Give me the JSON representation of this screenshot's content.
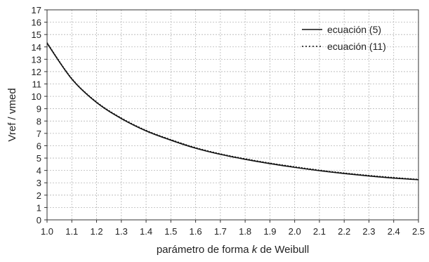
{
  "chart_data": {
    "type": "line",
    "title": "",
    "xlabel_pre": "parámetro de forma ",
    "xlabel_k": "k",
    "xlabel_post": " de Weibull",
    "ylabel": "Vref / vmed",
    "xlim": [
      1.0,
      2.5
    ],
    "ylim": [
      0,
      17
    ],
    "x_ticks": [
      "1.0",
      "1.1",
      "1.2",
      "1.3",
      "1.4",
      "1.5",
      "1.6",
      "1.7",
      "1.8",
      "1.9",
      "2.0",
      "2.1",
      "2.2",
      "2.3",
      "2.4",
      "2.5"
    ],
    "y_ticks": [
      "0",
      "1",
      "2",
      "3",
      "4",
      "5",
      "6",
      "7",
      "8",
      "9",
      "10",
      "11",
      "12",
      "13",
      "14",
      "15",
      "16",
      "17"
    ],
    "grid": true,
    "legend_position": "top-right",
    "colors": {
      "line": "#111111",
      "grid": "#b5b5b5",
      "axis": "#333333"
    },
    "series": [
      {
        "name": "ecuación (5)",
        "style": "solid",
        "x": [
          1.0,
          1.1,
          1.2,
          1.3,
          1.4,
          1.5,
          1.6,
          1.7,
          1.8,
          1.9,
          2.0,
          2.1,
          2.2,
          2.3,
          2.4,
          2.5
        ],
        "y": [
          14.3,
          11.4,
          9.5,
          8.2,
          7.2,
          6.45,
          5.8,
          5.3,
          4.9,
          4.55,
          4.25,
          3.98,
          3.75,
          3.55,
          3.38,
          3.25
        ]
      },
      {
        "name": "ecuación (11)",
        "style": "dotted",
        "x": [
          1.0,
          1.1,
          1.2,
          1.3,
          1.4,
          1.5,
          1.6,
          1.7,
          1.8,
          1.9,
          2.0,
          2.1,
          2.2,
          2.3,
          2.4,
          2.5
        ],
        "y": [
          14.35,
          11.45,
          9.55,
          8.25,
          7.25,
          6.5,
          5.85,
          5.35,
          4.95,
          4.6,
          4.3,
          4.03,
          3.8,
          3.6,
          3.43,
          3.28
        ]
      }
    ]
  }
}
